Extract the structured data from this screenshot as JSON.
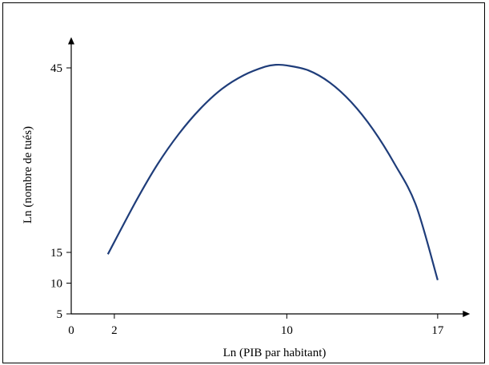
{
  "chart_data": {
    "type": "line",
    "title": "",
    "xlabel": "Ln (PIB par habitant)",
    "ylabel": "Ln (nombre de tués)",
    "x_ticks": [
      0,
      2,
      10,
      17
    ],
    "y_ticks": [
      5,
      10,
      15,
      45
    ],
    "xlim": [
      0,
      18.5
    ],
    "ylim": [
      5,
      50
    ],
    "series": [
      {
        "color": "#1f3d7a",
        "x": [
          1.7,
          3,
          4,
          5,
          6,
          7,
          8,
          9,
          9.5,
          10,
          11,
          12,
          13,
          14,
          15,
          16,
          17
        ],
        "y": [
          14.7,
          23.3,
          29.3,
          34.3,
          38.4,
          41.6,
          43.8,
          45.2,
          45.5,
          45.4,
          44.6,
          42.6,
          39.4,
          35.0,
          29.4,
          22.6,
          10.5
        ]
      }
    ]
  },
  "colors": {
    "axis": "#000000",
    "curve": "#1f3d7a",
    "frame": "#000000"
  }
}
